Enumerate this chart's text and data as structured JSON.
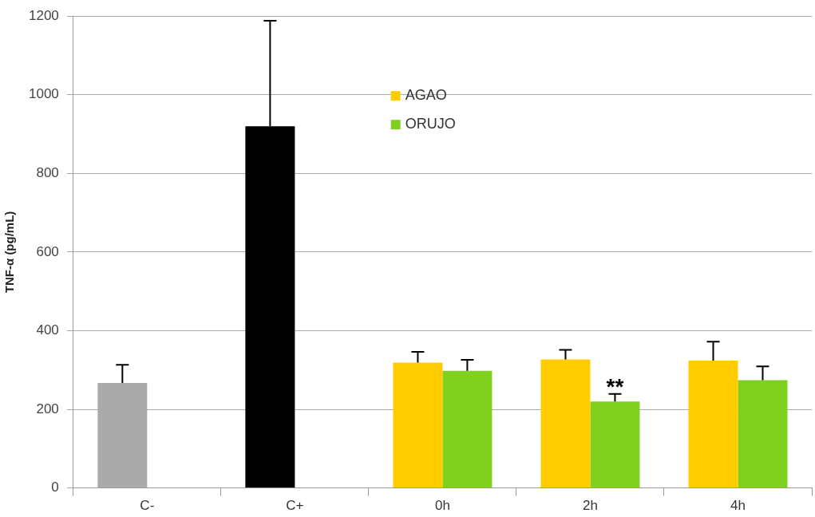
{
  "chart_data": {
    "type": "bar",
    "ylabel": "TNF-α (pg/mL)",
    "categories": [
      "C-",
      "C+",
      "0h",
      "2h",
      "4h"
    ],
    "series": [
      {
        "name": "AGAO",
        "color": "#ffcc00",
        "colors": [
          "#aaaaaa",
          "#000000",
          "#ffcc00",
          "#ffcc00",
          "#ffcc00"
        ],
        "values": [
          267,
          920,
          319,
          327,
          324
        ],
        "errors": [
          [
            267,
            313
          ],
          [
            920,
            1188
          ],
          [
            319,
            346
          ],
          [
            327,
            351
          ],
          [
            324,
            372
          ]
        ]
      },
      {
        "name": "ORUJO",
        "color": "#80d020",
        "values": [
          null,
          null,
          298,
          220,
          274
        ],
        "errors": [
          null,
          null,
          [
            298,
            326
          ],
          [
            220,
            239
          ],
          [
            274,
            309
          ]
        ]
      }
    ],
    "ylim": [
      0,
      1200
    ],
    "yticks": [
      0,
      200,
      400,
      600,
      800,
      1000,
      1200
    ],
    "grid": "y",
    "legend": "top",
    "annotations": [
      {
        "text": "**",
        "x": "2h",
        "y": 239
      }
    ]
  }
}
